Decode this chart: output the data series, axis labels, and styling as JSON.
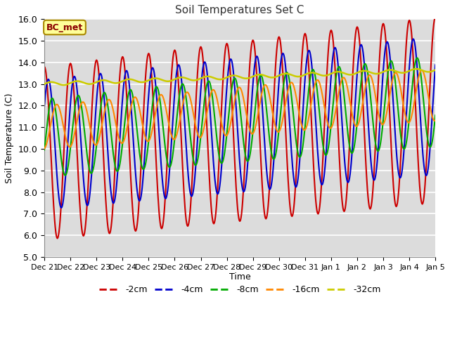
{
  "title": "Soil Temperatures Set C",
  "xlabel": "Time",
  "ylabel": "Soil Temperature (C)",
  "ylim": [
    5.0,
    16.0
  ],
  "yticks": [
    5.0,
    6.0,
    7.0,
    8.0,
    9.0,
    10.0,
    11.0,
    12.0,
    13.0,
    14.0,
    15.0,
    16.0
  ],
  "xtick_labels": [
    "Dec 21",
    "Dec 22",
    "Dec 23",
    "Dec 24",
    "Dec 25",
    "Dec 26",
    "Dec 27",
    "Dec 28",
    "Dec 29",
    "Dec 30",
    "Dec 31",
    "Jan 1",
    "Jan 2",
    "Jan 3",
    "Jan 4",
    "Jan 5"
  ],
  "colors": {
    "-2cm": "#cc0000",
    "-4cm": "#0000cc",
    "-8cm": "#00aa00",
    "-16cm": "#ff8800",
    "-32cm": "#cccc00"
  },
  "annotation_text": "BC_met",
  "annotation_bg": "#ffff99",
  "annotation_border": "#aa8800",
  "fig_bg": "#ffffff",
  "plot_bg": "#dcdcdc",
  "grid_color": "#ffffff",
  "n_days": 15,
  "pts_per_day": 48
}
